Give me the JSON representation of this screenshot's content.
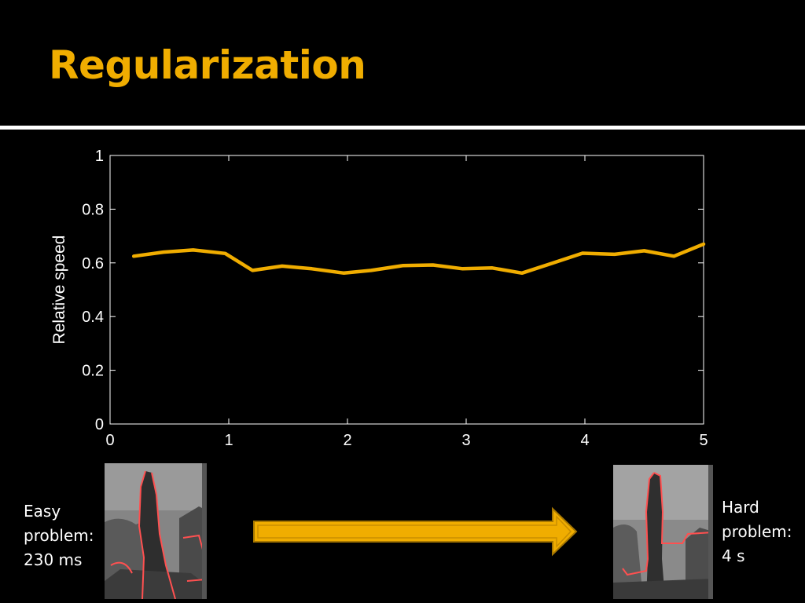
{
  "slide": {
    "title": "Regularization",
    "title_color": "#f0ad00",
    "accent_color": "#f0ad00",
    "rule_color": "#ffffff"
  },
  "chart_data": {
    "type": "line",
    "title": "",
    "xlabel": "",
    "ylabel": "Relative speed",
    "xlim": [
      0,
      5
    ],
    "ylim": [
      0,
      1
    ],
    "xticks": [
      0,
      1,
      2,
      3,
      4,
      5
    ],
    "yticks": [
      0,
      0.2,
      0.4,
      0.6,
      0.8,
      1
    ],
    "ytick_labels": [
      "0",
      "0.2",
      "0.4",
      "0.6",
      "0.8",
      "1"
    ],
    "grid": false,
    "series": [
      {
        "color": "#f0ad00",
        "x": [
          0.2,
          0.45,
          0.7,
          0.97,
          1.2,
          1.45,
          1.7,
          1.97,
          2.2,
          2.47,
          2.72,
          2.97,
          3.22,
          3.47,
          3.72,
          3.98,
          4.25,
          4.5,
          4.75,
          5.0
        ],
        "y": [
          0.625,
          0.64,
          0.648,
          0.635,
          0.572,
          0.588,
          0.578,
          0.562,
          0.572,
          0.59,
          0.592,
          0.578,
          0.581,
          0.562,
          0.598,
          0.636,
          0.632,
          0.645,
          0.625,
          0.67
        ]
      }
    ]
  },
  "easy": {
    "line1": "Easy",
    "line2": "problem:",
    "line3": "230 ms"
  },
  "hard": {
    "line1": "Hard",
    "line2": "problem:",
    "line3": "4 s"
  }
}
